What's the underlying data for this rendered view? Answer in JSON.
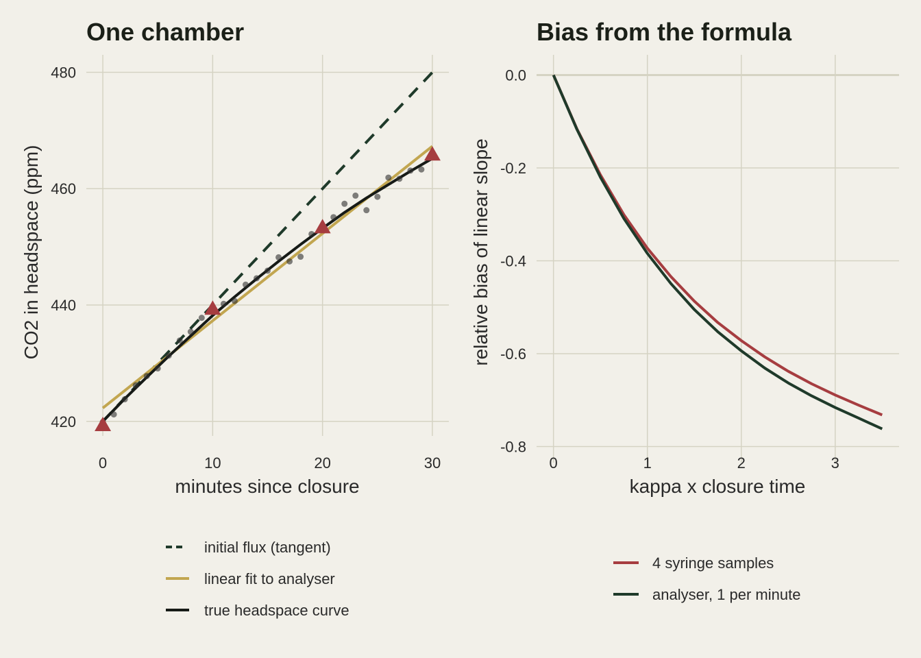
{
  "colors": {
    "background": "#f2f0e9",
    "grid": "#d5d3c3",
    "tangent": "#1f3a2a",
    "linear_fit": "#c2a650",
    "true_curve": "#161a16",
    "syringe": "#a63d40",
    "analyser": "#1f3a2a",
    "points": "#2f2f2f"
  },
  "chart_data": [
    {
      "type": "line",
      "title": "One chamber",
      "xlabel": "minutes since closure",
      "ylabel": "CO2 in headspace (ppm)",
      "xlim": [
        -1.5,
        31.5
      ],
      "ylim": [
        417.5,
        483
      ],
      "xticks": [
        0,
        10,
        20,
        30
      ],
      "yticks": [
        420,
        440,
        460,
        480
      ],
      "grid": true,
      "legend_position": "bottom",
      "series": [
        {
          "name": "initial flux (tangent)",
          "style": "dashed",
          "x": [
            0,
            30
          ],
          "y": [
            420,
            480
          ]
        },
        {
          "name": "linear fit to analyser",
          "style": "solid",
          "x": [
            0,
            30
          ],
          "y": [
            422.3,
            467.3
          ]
        },
        {
          "name": "true headspace curve",
          "style": "solid",
          "x": [
            0,
            2,
            4,
            6,
            8,
            10,
            12,
            14,
            16,
            18,
            20,
            22,
            24,
            26,
            28,
            30
          ],
          "y": [
            420,
            423.9,
            427.6,
            431.2,
            434.7,
            438.2,
            441.4,
            444.5,
            447.5,
            450.4,
            453.2,
            455.9,
            458.4,
            460.7,
            463.0,
            465.2
          ]
        }
      ],
      "analyser_points": {
        "x": [
          0,
          1,
          2,
          3,
          4,
          5,
          6,
          7,
          8,
          9,
          10,
          11,
          12,
          13,
          14,
          15,
          16,
          17,
          18,
          19,
          20,
          21,
          22,
          23,
          24,
          25,
          26,
          27,
          28,
          29
        ],
        "y": [
          419.9,
          421.2,
          423.8,
          426.2,
          427.8,
          429.1,
          431.3,
          433.9,
          435.4,
          437.8,
          439.2,
          440.2,
          440.7,
          443.5,
          444.6,
          445.9,
          448.2,
          447.5,
          448.3,
          452.2,
          453.0,
          455.1,
          457.4,
          458.8,
          456.3,
          458.6,
          461.9,
          461.7,
          463.1,
          463.3
        ]
      },
      "syringe_samples": {
        "x": [
          0,
          10,
          20,
          30
        ],
        "y": [
          419.5,
          439.5,
          453.5,
          466.0
        ]
      }
    },
    {
      "type": "line",
      "title": "Bias from the formula",
      "xlabel": "kappa x closure time",
      "ylabel": "relative bias of linear slope",
      "xlim": [
        -0.18,
        3.68
      ],
      "ylim": [
        -0.82,
        0.02
      ],
      "xticks": [
        0,
        1,
        2,
        3
      ],
      "yticks": [
        0.0,
        -0.2,
        -0.4,
        -0.6,
        -0.8
      ],
      "ytick_labels": [
        "0.0",
        "-0.2",
        "-0.4",
        "-0.6",
        "-0.8"
      ],
      "grid": true,
      "reference_line_y": 0,
      "legend_position": "bottom",
      "series": [
        {
          "name": "4 syringe samples",
          "x": [
            0,
            0.25,
            0.5,
            0.75,
            1.0,
            1.25,
            1.5,
            1.75,
            2.0,
            2.25,
            2.5,
            2.75,
            3.0,
            3.25,
            3.5
          ],
          "y": [
            0,
            -0.116,
            -0.215,
            -0.301,
            -0.373,
            -0.434,
            -0.487,
            -0.533,
            -0.572,
            -0.607,
            -0.638,
            -0.665,
            -0.689,
            -0.711,
            -0.732
          ]
        },
        {
          "name": "analyser, 1 per minute",
          "x": [
            0,
            0.25,
            0.5,
            0.75,
            1.0,
            1.25,
            1.5,
            1.75,
            2.0,
            2.25,
            2.5,
            2.75,
            3.0,
            3.25,
            3.5
          ],
          "y": [
            0,
            -0.117,
            -0.22,
            -0.309,
            -0.384,
            -0.449,
            -0.505,
            -0.553,
            -0.594,
            -0.631,
            -0.663,
            -0.691,
            -0.716,
            -0.739,
            -0.762
          ]
        }
      ]
    }
  ]
}
